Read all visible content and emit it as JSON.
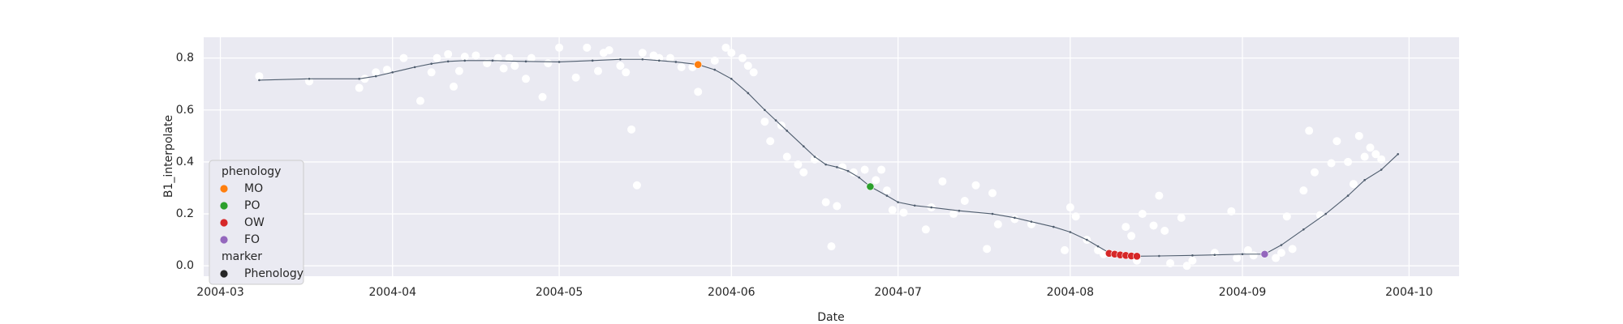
{
  "chart_data": {
    "type": "scatter",
    "x_label": "Date",
    "y_label": "B1_interpolate",
    "xlim": [
      58,
      284
    ],
    "ylim": [
      -0.04,
      0.88
    ],
    "xticks": [
      {
        "value": 61,
        "label": "2004-03"
      },
      {
        "value": 92,
        "label": "2004-04"
      },
      {
        "value": 122,
        "label": "2004-05"
      },
      {
        "value": 153,
        "label": "2004-06"
      },
      {
        "value": 183,
        "label": "2004-07"
      },
      {
        "value": 214,
        "label": "2004-08"
      },
      {
        "value": 245,
        "label": "2004-09"
      },
      {
        "value": 275,
        "label": "2004-10"
      }
    ],
    "yticks": [
      {
        "value": 0,
        "label": "0.0"
      },
      0.2,
      0.4,
      0.6,
      0.8
    ],
    "grid": true,
    "legend": {
      "title": "phenology",
      "position": "lower left"
    },
    "marker_legend": {
      "title": "marker",
      "labels": [
        "Phenology"
      ],
      "color": "#262626"
    },
    "series": [
      {
        "type": "scatter",
        "color": "#ffffff",
        "x": [
          68,
          77,
          86,
          87,
          89,
          91,
          94,
          97,
          99,
          100,
          102,
          103,
          104,
          105,
          107,
          109,
          111,
          112,
          113,
          114,
          116,
          117,
          119,
          120,
          122,
          125,
          127,
          129,
          130,
          131,
          133,
          134,
          135,
          136,
          137,
          139,
          140,
          142,
          144,
          146,
          147,
          150,
          152,
          153,
          155,
          156,
          157,
          159,
          160,
          162,
          163,
          165,
          166,
          168,
          170,
          171,
          172,
          173,
          175,
          177,
          179,
          180,
          181,
          182,
          184,
          188,
          189,
          191,
          193,
          195,
          197,
          199,
          200,
          201,
          204,
          207,
          213,
          214,
          215,
          217,
          219,
          220,
          224,
          225,
          226,
          227,
          229,
          230,
          231,
          232,
          234,
          235,
          236,
          240,
          243,
          244,
          246,
          247,
          251,
          252,
          253,
          254,
          256,
          257,
          258,
          259,
          261,
          262,
          264,
          265,
          266,
          267,
          268,
          269,
          270
        ],
        "values": [
          0.73,
          0.71,
          0.685,
          0.72,
          0.745,
          0.755,
          0.8,
          0.635,
          0.745,
          0.8,
          0.815,
          0.69,
          0.75,
          0.805,
          0.81,
          0.78,
          0.8,
          0.76,
          0.8,
          0.77,
          0.72,
          0.8,
          0.65,
          0.78,
          0.84,
          0.725,
          0.84,
          0.75,
          0.82,
          0.83,
          0.77,
          0.745,
          0.525,
          0.31,
          0.82,
          0.81,
          0.8,
          0.8,
          0.765,
          0.765,
          0.67,
          0.79,
          0.84,
          0.82,
          0.8,
          0.77,
          0.745,
          0.555,
          0.48,
          0.54,
          0.42,
          0.39,
          0.36,
          0.41,
          0.245,
          0.075,
          0.23,
          0.38,
          0.36,
          0.37,
          0.33,
          0.37,
          0.29,
          0.215,
          0.205,
          0.14,
          0.225,
          0.325,
          0.2,
          0.25,
          0.31,
          0.065,
          0.28,
          0.16,
          0.18,
          0.16,
          0.06,
          0.225,
          0.19,
          0.1,
          0.06,
          0.045,
          0.15,
          0.115,
          0.02,
          0.2,
          0.155,
          0.27,
          0.135,
          0.01,
          0.185,
          0.0,
          0.02,
          0.05,
          0.21,
          0.03,
          0.06,
          0.04,
          0.03,
          0.05,
          0.19,
          0.065,
          0.29,
          0.52,
          0.36,
          0.195,
          0.395,
          0.48,
          0.4,
          0.315,
          0.5,
          0.42,
          0.455,
          0.43,
          0.41
        ]
      },
      {
        "type": "line",
        "color": "#4f5d6e",
        "x": [
          68,
          77,
          86,
          89,
          92,
          96,
          99,
          102,
          105,
          110,
          116,
          122,
          128,
          133,
          137,
          140,
          143,
          147,
          150,
          153,
          156,
          159,
          161,
          163,
          166,
          168,
          170,
          172,
          174,
          176,
          178,
          181,
          183,
          186,
          189,
          194,
          200,
          204,
          207,
          211,
          214,
          217,
          219,
          221,
          222,
          223,
          224,
          225,
          226,
          230,
          236,
          240,
          245,
          249,
          252,
          256,
          260,
          264,
          267,
          270,
          273
        ],
        "values": [
          0.715,
          0.72,
          0.72,
          0.73,
          0.745,
          0.765,
          0.778,
          0.787,
          0.79,
          0.79,
          0.787,
          0.785,
          0.79,
          0.795,
          0.795,
          0.79,
          0.785,
          0.775,
          0.755,
          0.72,
          0.665,
          0.6,
          0.56,
          0.52,
          0.46,
          0.42,
          0.39,
          0.38,
          0.365,
          0.34,
          0.305,
          0.27,
          0.245,
          0.232,
          0.225,
          0.212,
          0.2,
          0.185,
          0.17,
          0.15,
          0.13,
          0.1,
          0.075,
          0.05,
          0.045,
          0.042,
          0.04,
          0.038,
          0.037,
          0.038,
          0.04,
          0.042,
          0.045,
          0.045,
          0.08,
          0.14,
          0.2,
          0.27,
          0.33,
          0.37,
          0.43
        ]
      },
      {
        "type": "scatter",
        "name": "MO",
        "color": "#ff7f0e",
        "x": [
          147
        ],
        "values": [
          0.775
        ]
      },
      {
        "type": "scatter",
        "name": "PO",
        "color": "#2ca02c",
        "x": [
          178
        ],
        "values": [
          0.305
        ]
      },
      {
        "type": "scatter",
        "name": "OW",
        "color": "#d62728",
        "x": [
          221,
          222,
          223,
          224,
          225,
          226
        ],
        "values": [
          0.048,
          0.045,
          0.042,
          0.04,
          0.038,
          0.037
        ]
      },
      {
        "type": "scatter",
        "name": "FO",
        "color": "#9467bd",
        "x": [
          249
        ],
        "values": [
          0.045
        ]
      }
    ]
  }
}
